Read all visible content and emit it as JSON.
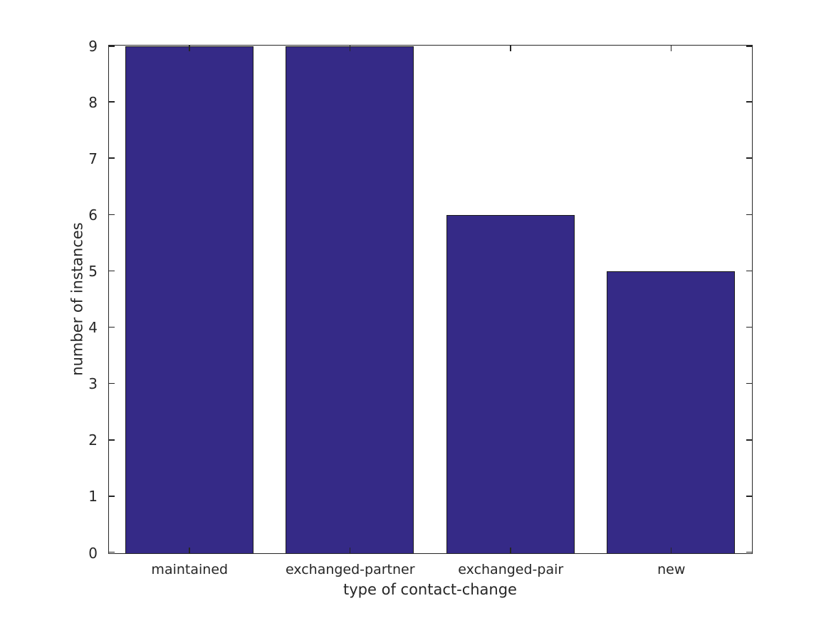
{
  "chart_data": {
    "type": "bar",
    "title": "",
    "categories": [
      "maintained",
      "exchanged-partner",
      "exchanged-pair",
      "new"
    ],
    "values": [
      9,
      9,
      6,
      5
    ],
    "xlabel": "type of contact-change",
    "ylabel": "number of instances",
    "ylim": [
      0,
      9
    ],
    "yticks": [
      0,
      1,
      2,
      3,
      4,
      5,
      6,
      7,
      8,
      9
    ],
    "grid": false,
    "legend": "none",
    "bar_width_fraction": 0.8,
    "colors": {
      "bar_fill": "#352a87",
      "bar_edge": "#1a1a1a",
      "axis": "#262626",
      "text": "#262626",
      "background": "#ffffff"
    }
  }
}
